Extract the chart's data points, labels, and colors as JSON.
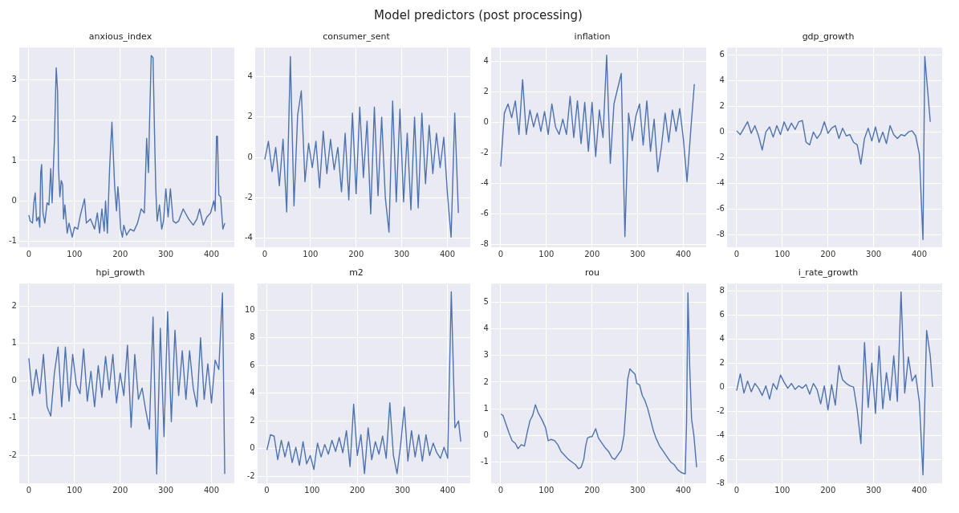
{
  "chart_data": [
    {
      "type": "other",
      "title": "Model predictors (post processing)"
    },
    {
      "type": "line",
      "title": "anxious_index",
      "xlim": [
        -21,
        450
      ],
      "xticks": [
        0,
        100,
        200,
        300,
        400
      ],
      "ylim": [
        -1.15,
        3.8
      ],
      "yticks": [
        -1,
        0,
        1,
        2,
        3
      ],
      "grid": true,
      "series": [
        {
          "color": "#4c72b0",
          "x": [
            0,
            3,
            8,
            11,
            14,
            17,
            21,
            24,
            26,
            28,
            31,
            35,
            40,
            44,
            48,
            51,
            56,
            60,
            63,
            65,
            68,
            71,
            74,
            76,
            79,
            84,
            88,
            95,
            100,
            107,
            113,
            122,
            126,
            135,
            144,
            150,
            155,
            160,
            165,
            168,
            172,
            177,
            182,
            188,
            192,
            195,
            198,
            201,
            205,
            208,
            214,
            222,
            230,
            238,
            246,
            253,
            258,
            262,
            264,
            268,
            272,
            275,
            278,
            281,
            286,
            291,
            295,
            300,
            305,
            310,
            316,
            322,
            328,
            338,
            350,
            360,
            368,
            374,
            382,
            390,
            398,
            405,
            408,
            411,
            413,
            416,
            420,
            423,
            425,
            429
          ],
          "values": [
            -0.35,
            -0.5,
            -0.55,
            -0.05,
            0.2,
            -0.5,
            -0.4,
            -0.65,
            0.7,
            0.9,
            -0.3,
            -0.55,
            -0.05,
            -0.1,
            0.8,
            -0.05,
            1.5,
            3.3,
            2.7,
            0.8,
            0.1,
            0.5,
            0.4,
            -0.45,
            -0.1,
            -0.8,
            -0.55,
            -0.9,
            -0.65,
            -0.7,
            -0.35,
            0.05,
            -0.55,
            -0.45,
            -0.7,
            -0.3,
            -0.8,
            -0.2,
            -0.75,
            0.0,
            -0.8,
            0.85,
            1.95,
            0.35,
            -0.25,
            0.35,
            -0.05,
            -0.7,
            -0.9,
            -0.6,
            -0.85,
            -0.7,
            -0.75,
            -0.55,
            -0.2,
            -0.3,
            1.55,
            0.7,
            1.8,
            3.6,
            3.55,
            1.8,
            0.3,
            -0.5,
            -0.1,
            -0.7,
            -0.5,
            0.3,
            -0.4,
            0.3,
            -0.5,
            -0.55,
            -0.5,
            -0.2,
            -0.45,
            -0.6,
            -0.45,
            -0.2,
            -0.6,
            -0.4,
            -0.3,
            0.0,
            -0.25,
            1.6,
            1.6,
            0.15,
            0.1,
            -0.4,
            -0.7,
            -0.55
          ]
        }
      ]
    },
    {
      "type": "line",
      "title": "consumer_sent",
      "xlim": [
        -21,
        450
      ],
      "xticks": [
        0,
        100,
        200,
        300,
        400
      ],
      "ylim": [
        -4.45,
        5.45
      ],
      "yticks": [
        -4,
        -2,
        0,
        2,
        4
      ],
      "grid": true,
      "series": [
        {
          "color": "#4c72b0",
          "x": [
            0,
            8,
            16,
            24,
            32,
            40,
            48,
            56,
            64,
            72,
            80,
            88,
            96,
            104,
            112,
            120,
            128,
            136,
            144,
            152,
            160,
            168,
            176,
            184,
            192,
            200,
            208,
            216,
            224,
            232,
            240,
            248,
            256,
            264,
            272,
            280,
            288,
            296,
            304,
            312,
            320,
            328,
            336,
            344,
            352,
            360,
            368,
            376,
            384,
            392,
            400,
            408,
            416,
            424
          ],
          "values": [
            -0.1,
            0.8,
            -0.7,
            0.5,
            -1.4,
            0.9,
            -2.7,
            5.0,
            -2.4,
            2.1,
            3.3,
            -1.2,
            0.7,
            -0.5,
            0.8,
            -1.5,
            1.3,
            -0.8,
            0.9,
            -0.6,
            0.5,
            -1.7,
            1.2,
            -2.1,
            2.2,
            -1.8,
            2.5,
            -1.0,
            1.8,
            -2.8,
            2.5,
            -1.9,
            2.0,
            -2.0,
            -3.7,
            2.8,
            -2.2,
            2.4,
            -2.2,
            1.2,
            -2.6,
            2.0,
            -2.5,
            2.2,
            -1.3,
            1.6,
            -0.8,
            1.2,
            -0.5,
            1.0,
            -1.8,
            -3.95,
            2.2,
            -2.75
          ]
        }
      ]
    },
    {
      "type": "line",
      "title": "inflation",
      "xlim": [
        -21,
        450
      ],
      "xticks": [
        0,
        100,
        200,
        300,
        400
      ],
      "ylim": [
        -8.2,
        4.9
      ],
      "yticks": [
        -8,
        -6,
        -4,
        -2,
        0,
        2,
        4
      ],
      "grid": true,
      "series": [
        {
          "color": "#4c72b0",
          "x": [
            0,
            8,
            16,
            24,
            32,
            40,
            48,
            56,
            64,
            72,
            80,
            88,
            96,
            104,
            112,
            120,
            128,
            136,
            144,
            152,
            160,
            168,
            176,
            184,
            192,
            200,
            208,
            216,
            224,
            232,
            240,
            248,
            256,
            264,
            272,
            280,
            288,
            296,
            304,
            312,
            320,
            328,
            336,
            344,
            352,
            360,
            368,
            376,
            384,
            392,
            400,
            408,
            416,
            424
          ],
          "values": [
            -2.9,
            0.6,
            1.2,
            0.3,
            1.4,
            -0.8,
            2.8,
            -0.8,
            0.8,
            -0.3,
            0.6,
            -0.6,
            0.7,
            -0.8,
            1.2,
            -0.3,
            -0.8,
            0.2,
            -0.8,
            1.7,
            -1.0,
            1.4,
            -1.4,
            1.3,
            -1.9,
            1.3,
            -2.25,
            0.8,
            -1.0,
            4.4,
            -2.7,
            1.2,
            2.2,
            3.2,
            -7.5,
            0.6,
            -1.2,
            0.4,
            1.2,
            -1.5,
            1.4,
            -1.9,
            0.2,
            -3.25,
            -1.6,
            0.6,
            -1.3,
            0.8,
            -0.6,
            0.9,
            -1.1,
            -3.9,
            -0.6,
            2.5
          ]
        }
      ]
    },
    {
      "type": "line",
      "title": "gdp_growth",
      "xlim": [
        -21,
        450
      ],
      "xticks": [
        0,
        100,
        200,
        300,
        400
      ],
      "ylim": [
        -9.0,
        6.6
      ],
      "yticks": [
        -8,
        -6,
        -4,
        -2,
        0,
        2,
        4,
        6
      ],
      "grid": true,
      "series": [
        {
          "color": "#4c72b0",
          "x": [
            0,
            8,
            16,
            24,
            32,
            40,
            48,
            56,
            64,
            72,
            80,
            88,
            96,
            104,
            112,
            120,
            128,
            136,
            144,
            152,
            160,
            168,
            176,
            184,
            192,
            200,
            208,
            216,
            224,
            232,
            240,
            248,
            256,
            264,
            272,
            280,
            288,
            296,
            304,
            312,
            320,
            328,
            336,
            344,
            352,
            360,
            368,
            376,
            384,
            392,
            400,
            408,
            412,
            424
          ],
          "values": [
            0.1,
            -0.2,
            0.3,
            0.8,
            -0.1,
            0.5,
            -0.3,
            -1.4,
            0.0,
            0.4,
            -0.4,
            0.5,
            -0.2,
            0.8,
            0.1,
            0.7,
            0.2,
            0.8,
            0.9,
            -0.8,
            -1.0,
            0.0,
            -0.5,
            -0.1,
            0.8,
            -0.1,
            0.3,
            0.5,
            -0.5,
            0.3,
            -0.3,
            -0.2,
            -0.8,
            -1.0,
            -2.5,
            -0.5,
            0.3,
            -0.7,
            0.4,
            -0.8,
            0.0,
            -0.9,
            0.5,
            -0.2,
            -0.5,
            -0.2,
            -0.3,
            0.0,
            0.1,
            -0.3,
            -1.7,
            -8.4,
            5.9,
            0.8
          ]
        }
      ]
    },
    {
      "type": "line",
      "title": "hpi_growth",
      "xlim": [
        -21,
        450
      ],
      "xticks": [
        0,
        100,
        200,
        300,
        400
      ],
      "ylim": [
        -2.75,
        2.6
      ],
      "yticks": [
        -2,
        -1,
        0,
        1,
        2
      ],
      "grid": true,
      "series": [
        {
          "color": "#4c72b0",
          "x": [
            0,
            8,
            16,
            24,
            32,
            40,
            48,
            56,
            64,
            72,
            80,
            88,
            96,
            104,
            112,
            120,
            128,
            136,
            144,
            152,
            160,
            168,
            176,
            184,
            192,
            200,
            208,
            216,
            224,
            232,
            240,
            248,
            256,
            264,
            272,
            280,
            288,
            296,
            304,
            312,
            320,
            328,
            336,
            344,
            352,
            360,
            368,
            376,
            384,
            392,
            400,
            408,
            416,
            424,
            429
          ],
          "values": [
            0.6,
            -0.4,
            0.3,
            -0.35,
            0.7,
            -0.7,
            -0.95,
            0.2,
            0.9,
            -0.7,
            0.9,
            -0.55,
            0.7,
            -0.1,
            -0.35,
            0.85,
            -0.55,
            0.25,
            -0.7,
            0.4,
            -0.45,
            0.65,
            -0.25,
            0.7,
            -0.6,
            0.2,
            -0.4,
            0.95,
            -1.25,
            0.7,
            -0.5,
            -0.2,
            -0.8,
            -1.3,
            1.7,
            -2.5,
            1.4,
            -1.5,
            1.85,
            -1.1,
            1.35,
            -0.4,
            0.8,
            -0.5,
            0.8,
            -0.2,
            -0.7,
            1.15,
            -0.5,
            0.45,
            -0.6,
            0.55,
            0.3,
            2.35,
            -2.5
          ]
        }
      ]
    },
    {
      "type": "line",
      "title": "m2",
      "xlim": [
        -21,
        450
      ],
      "xticks": [
        0,
        100,
        200,
        300,
        400
      ],
      "ylim": [
        -2.5,
        11.9
      ],
      "yticks": [
        -2,
        0,
        2,
        4,
        6,
        8,
        10
      ],
      "grid": true,
      "series": [
        {
          "color": "#4c72b0",
          "x": [
            0,
            8,
            16,
            24,
            32,
            40,
            48,
            56,
            64,
            72,
            80,
            88,
            96,
            104,
            112,
            120,
            128,
            136,
            144,
            152,
            160,
            168,
            176,
            184,
            192,
            200,
            208,
            216,
            224,
            232,
            240,
            248,
            256,
            264,
            272,
            280,
            288,
            296,
            304,
            312,
            320,
            328,
            336,
            344,
            352,
            360,
            368,
            376,
            384,
            392,
            400,
            408,
            416,
            424,
            429
          ],
          "values": [
            -0.1,
            1.0,
            0.9,
            -0.8,
            0.6,
            -0.6,
            0.5,
            -1.0,
            0.1,
            -1.2,
            0.5,
            -1.1,
            -0.5,
            -1.5,
            0.4,
            -0.6,
            0.3,
            -0.4,
            0.6,
            -0.2,
            0.8,
            -0.3,
            1.3,
            -1.3,
            3.2,
            -0.5,
            1.0,
            -1.8,
            1.5,
            -0.8,
            0.5,
            -0.4,
            0.9,
            -0.7,
            3.3,
            -0.5,
            -1.8,
            0.3,
            3.0,
            -0.9,
            1.3,
            -0.6,
            1.0,
            -0.9,
            1.0,
            -0.5,
            0.4,
            -0.3,
            -0.7,
            0.1,
            -0.7,
            11.3,
            1.5,
            2.0,
            0.5
          ]
        }
      ]
    },
    {
      "type": "line",
      "title": "rou",
      "xlim": [
        -21,
        450
      ],
      "xticks": [
        0,
        100,
        200,
        300,
        400
      ],
      "ylim": [
        -1.8,
        5.7
      ],
      "yticks": [
        -1,
        0,
        1,
        2,
        3,
        4,
        5
      ],
      "grid": true,
      "series": [
        {
          "color": "#4c72b0",
          "x": [
            0,
            5,
            10,
            18,
            25,
            32,
            38,
            45,
            52,
            58,
            64,
            70,
            76,
            82,
            90,
            98,
            104,
            110,
            118,
            125,
            132,
            140,
            148,
            156,
            164,
            170,
            176,
            182,
            186,
            190,
            196,
            200,
            204,
            208,
            214,
            220,
            228,
            236,
            244,
            250,
            256,
            264,
            270,
            274,
            278,
            283,
            288,
            294,
            298,
            304,
            310,
            316,
            322,
            328,
            334,
            340,
            348,
            356,
            364,
            372,
            380,
            388,
            396,
            404,
            407,
            410,
            414,
            418,
            423,
            429
          ],
          "values": [
            0.8,
            0.75,
            0.5,
            0.1,
            -0.2,
            -0.3,
            -0.5,
            -0.35,
            -0.4,
            0.1,
            0.55,
            0.75,
            1.15,
            0.85,
            0.6,
            0.3,
            -0.2,
            -0.15,
            -0.2,
            -0.35,
            -0.6,
            -0.75,
            -0.9,
            -1.0,
            -1.1,
            -1.25,
            -1.2,
            -0.9,
            -0.4,
            -0.1,
            -0.05,
            -0.05,
            0.1,
            0.25,
            -0.1,
            -0.25,
            -0.45,
            -0.6,
            -0.85,
            -0.9,
            -0.75,
            -0.55,
            0.0,
            1.0,
            2.1,
            2.5,
            2.4,
            2.3,
            1.95,
            1.9,
            1.5,
            1.3,
            1.0,
            0.6,
            0.2,
            -0.1,
            -0.4,
            -0.6,
            -0.8,
            -1.0,
            -1.1,
            -1.3,
            -1.4,
            -1.45,
            0.5,
            5.35,
            2.5,
            0.6,
            0.0,
            -1.2
          ]
        }
      ]
    },
    {
      "type": "line",
      "title": "i_rate_growth",
      "xlim": [
        -21,
        450
      ],
      "xticks": [
        0,
        100,
        200,
        300,
        400
      ],
      "ylim": [
        -8.0,
        8.6
      ],
      "yticks": [
        -8,
        -6,
        -4,
        -2,
        0,
        2,
        4,
        6,
        8
      ],
      "grid": true,
      "series": [
        {
          "color": "#4c72b0",
          "x": [
            0,
            8,
            16,
            24,
            32,
            40,
            48,
            56,
            64,
            72,
            80,
            88,
            96,
            104,
            112,
            120,
            128,
            136,
            144,
            152,
            160,
            168,
            176,
            184,
            192,
            200,
            208,
            216,
            224,
            232,
            240,
            248,
            256,
            264,
            272,
            280,
            288,
            296,
            304,
            312,
            320,
            328,
            336,
            344,
            352,
            360,
            368,
            376,
            384,
            392,
            400,
            408,
            416,
            424,
            429
          ],
          "values": [
            -0.3,
            1.1,
            -0.5,
            0.5,
            -0.4,
            0.3,
            -0.1,
            -0.7,
            0.1,
            -1.0,
            0.3,
            -0.2,
            1.0,
            0.4,
            -0.1,
            0.3,
            -0.2,
            0.1,
            -0.1,
            0.2,
            -0.6,
            0.3,
            -0.2,
            -1.4,
            0.1,
            -1.9,
            0.2,
            -1.5,
            1.8,
            0.6,
            0.3,
            0.1,
            0.0,
            -1.9,
            -4.7,
            3.7,
            -1.7,
            2.0,
            -2.2,
            3.4,
            -1.8,
            1.2,
            -1.1,
            2.6,
            -1.2,
            7.9,
            -0.5,
            2.5,
            0.5,
            1.0,
            -1.2,
            -7.3,
            4.7,
            2.6,
            0.0
          ]
        }
      ]
    }
  ]
}
